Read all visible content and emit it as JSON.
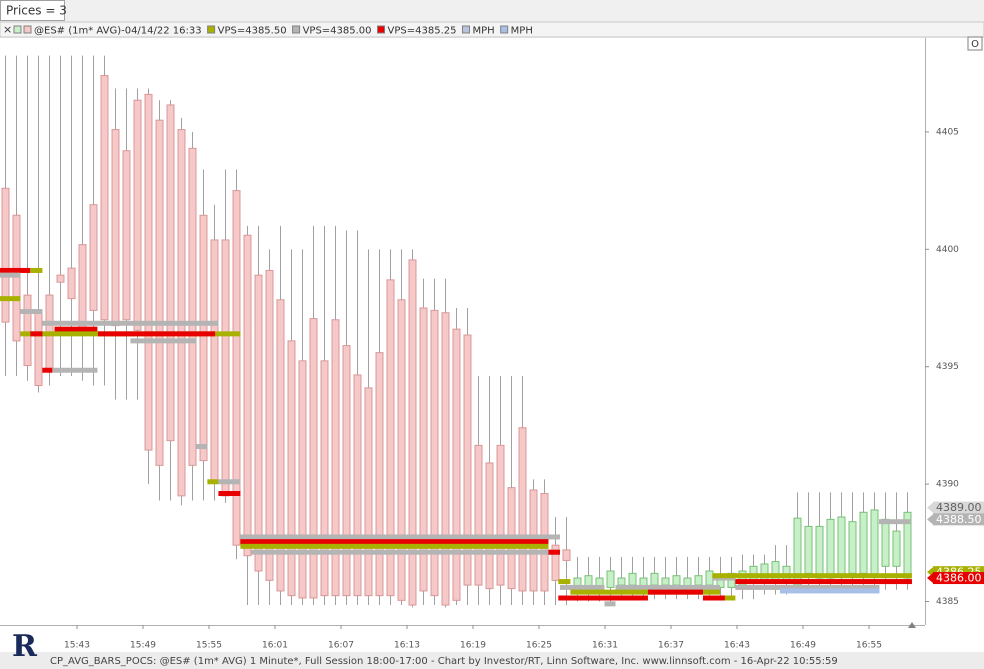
{
  "prices_label": "Prices = 3",
  "corner_button": "O",
  "logo": "R",
  "footer": "CP_AVG_BARS_POCS: @ES# (1m* AVG) 1 Minute*, Full Session 18:00-17:00 - Chart by Investor/RT, Linn Software, Inc. www.linnsoft.com - 16-Apr-22 10:55:59",
  "chart_data": {
    "type": "candlestick",
    "legend": [
      {
        "name": "@ES# (1m* AVG)-04/14/22 16:33",
        "colors": [
          "#c8f0c8",
          "#f6c8c8"
        ]
      },
      {
        "name": "VPS=4385.50",
        "colors": [
          "#a8b000"
        ]
      },
      {
        "name": "VPS=4385.00",
        "colors": [
          "#b4b4b4"
        ]
      },
      {
        "name": "VPS=4385.25",
        "colors": [
          "#e80000"
        ]
      },
      {
        "name": "MPH",
        "colors": [
          "#b8c4dc"
        ]
      },
      {
        "name": "MPH",
        "colors": [
          "#a8c0e8"
        ]
      }
    ],
    "up_color": "#c8f0c8",
    "up_edge": "#78c078",
    "down_color": "#f6c8c8",
    "down_edge": "#d89898",
    "wick_color": "#a0a0a0",
    "categories": [
      null,
      null,
      null,
      null,
      null,
      null,
      "15:43",
      null,
      null,
      null,
      null,
      null,
      "15:49",
      null,
      null,
      null,
      null,
      null,
      "15:55",
      null,
      null,
      null,
      null,
      null,
      "16:01",
      null,
      null,
      null,
      null,
      null,
      "16:07",
      null,
      null,
      null,
      null,
      null,
      "16:13",
      null,
      null,
      null,
      null,
      null,
      "16:19",
      null,
      null,
      null,
      null,
      null,
      "16:25",
      null,
      null,
      null,
      null,
      null,
      "16:31",
      null,
      null,
      null,
      null,
      null,
      "16:37",
      null,
      null,
      null,
      null,
      null,
      "16:43",
      null,
      null,
      null,
      null,
      null,
      "16:49",
      null,
      null,
      null,
      null,
      null,
      "16:55",
      null,
      null,
      null,
      null
    ],
    "open": [
      4402.6,
      4401.45,
      4398.05,
      4397.4,
      4398.05,
      4398.9,
      4399.2,
      4400.2,
      4401.9,
      4407.4,
      4405.1,
      4404.2,
      4406.35,
      4406.6,
      4405.5,
      4406.15,
      4405.1,
      4404.3,
      4401.45,
      4400.4,
      4400.4,
      4402.5,
      4400.6,
      4398.9,
      4399.1,
      4397.85,
      4396.1,
      4395.25,
      4397.05,
      4395.25,
      4397.0,
      4395.9,
      4394.65,
      4394.1,
      4395.6,
      4398.7,
      4397.85,
      4399.55,
      4397.5,
      4397.4,
      4397.3,
      4396.6,
      4396.35,
      4391.65,
      4390.9,
      4391.65,
      4389.85,
      4392.4,
      4389.75,
      4389.6,
      4387.4,
      4387.2,
      4385.5,
      4385.6,
      4385.5,
      4385.6,
      4385.7,
      4385.7,
      4385.6,
      4385.7,
      4385.7,
      4385.7,
      4385.6,
      4385.7,
      4385.7,
      4385.6,
      4385.6,
      4385.7,
      4385.8,
      4385.8,
      4385.9,
      4385.9,
      4385.7,
      4386.2,
      4386.0,
      4386.0,
      4386.1,
      4386.2,
      4386.2,
      4386.1,
      4386.5,
      4386.5,
      4386.0
    ],
    "high": [
      4408.25,
      4408.25,
      4408.25,
      4408.25,
      4408.25,
      4408.25,
      4408.25,
      4408.25,
      4408.25,
      4408.25,
      4406.85,
      4406.85,
      4406.85,
      4406.85,
      4406.35,
      4406.35,
      4405.6,
      4405.0,
      4403.4,
      4401.9,
      4403.4,
      4403.4,
      4401.0,
      4401.0,
      4400.0,
      4401.0,
      4400.0,
      4400.0,
      4401.0,
      4401.0,
      4401.0,
      4400.8,
      4400.8,
      4400.0,
      4400.0,
      4400.0,
      4400.0,
      4400.0,
      4398.75,
      4398.75,
      4398.75,
      4397.5,
      4397.5,
      4394.6,
      4394.6,
      4394.6,
      4394.6,
      4394.6,
      4390.2,
      4390.2,
      4388.6,
      4388.6,
      4386.9,
      4386.9,
      4386.9,
      4386.9,
      4386.9,
      4386.9,
      4386.9,
      4386.9,
      4386.9,
      4386.9,
      4386.9,
      4386.9,
      4386.9,
      4386.9,
      4386.9,
      4387.0,
      4387.0,
      4387.0,
      4387.4,
      4387.4,
      4389.65,
      4389.65,
      4389.65,
      4389.65,
      4389.65,
      4389.65,
      4389.65,
      4389.65,
      4389.65,
      4389.65,
      4389.65
    ],
    "low": [
      4394.6,
      4394.6,
      4394.4,
      4393.9,
      4394.2,
      4394.6,
      4394.6,
      4394.4,
      4394.2,
      4394.2,
      4393.6,
      4393.6,
      4393.6,
      4390.0,
      4389.3,
      4389.3,
      4389.1,
      4389.3,
      4389.3,
      4389.3,
      4389.2,
      4386.8,
      4384.85,
      4384.85,
      4384.85,
      4384.85,
      4384.85,
      4384.85,
      4384.85,
      4384.85,
      4384.85,
      4384.85,
      4384.85,
      4384.85,
      4384.85,
      4384.85,
      4384.85,
      4384.75,
      4384.85,
      4384.85,
      4384.75,
      4384.85,
      4384.85,
      4384.85,
      4384.85,
      4384.85,
      4384.85,
      4384.85,
      4384.85,
      4384.85,
      4384.85,
      4384.85,
      4385.0,
      4385.0,
      4385.0,
      4385.0,
      4385.1,
      4385.1,
      4385.1,
      4385.1,
      4385.1,
      4385.1,
      4385.1,
      4385.1,
      4385.1,
      4385.1,
      4385.1,
      4385.1,
      4385.1,
      4385.3,
      4385.3,
      4385.3,
      4385.5,
      4385.5,
      4385.5,
      4385.5,
      4385.5,
      4385.5,
      4385.5,
      4385.5,
      4385.5,
      4385.5,
      4385.5
    ],
    "close": [
      4396.9,
      4396.1,
      4395.05,
      4394.2,
      4394.85,
      4398.6,
      4397.9,
      4396.55,
      4397.4,
      4397.0,
      4396.75,
      4397.0,
      4396.55,
      4391.45,
      4390.8,
      4391.85,
      4389.5,
      4390.8,
      4391.0,
      4390.15,
      4389.5,
      4387.4,
      4386.95,
      4386.3,
      4385.9,
      4385.45,
      4385.25,
      4385.15,
      4385.15,
      4385.25,
      4385.25,
      4385.25,
      4385.25,
      4385.25,
      4385.25,
      4385.25,
      4385.05,
      4384.85,
      4385.45,
      4385.25,
      4384.85,
      4385.05,
      4385.7,
      4385.7,
      4385.55,
      4385.7,
      4385.55,
      4385.45,
      4385.45,
      4385.45,
      4385.9,
      4386.75,
      4386.0,
      4386.1,
      4386.0,
      4386.3,
      4386.0,
      4386.2,
      4386.0,
      4386.2,
      4386.0,
      4386.1,
      4386.0,
      4386.1,
      4386.3,
      4386.0,
      4386.2,
      4386.3,
      4386.5,
      4386.6,
      4386.7,
      4386.5,
      4388.55,
      4388.2,
      4388.2,
      4388.5,
      4388.6,
      4388.4,
      4388.8,
      4388.9,
      4388.5,
      4388.0,
      4388.8
    ],
    "levels": [
      {
        "color": "#e80000",
        "value": 4399.1,
        "start": -0.5,
        "end": 2.3
      },
      {
        "color": "#a8b000",
        "value": 4399.1,
        "start": 2.3,
        "end": 3.4
      },
      {
        "color": "#b4b4b4",
        "value": 4398.9,
        "start": -0.5,
        "end": 1.4
      },
      {
        "color": "#a8b000",
        "value": 4397.9,
        "start": -0.5,
        "end": 1.4
      },
      {
        "color": "#b4b4b4",
        "value": 4397.35,
        "start": 1.4,
        "end": 3.4
      },
      {
        "color": "#b4b4b4",
        "value": 4396.85,
        "start": 3.4,
        "end": 19.4
      },
      {
        "color": "#e80000",
        "value": 4396.6,
        "start": 4.5,
        "end": 8.4
      },
      {
        "color": "#a8b000",
        "value": 4396.4,
        "start": 1.4,
        "end": 21.4
      },
      {
        "color": "#e80000",
        "value": 4396.4,
        "start": 8.45,
        "end": 19.1
      },
      {
        "color": "#e80000",
        "value": 4396.4,
        "start": 2.3,
        "end": 3.4
      },
      {
        "color": "#b4b4b4",
        "value": 4396.1,
        "start": 11.4,
        "end": 17.4
      },
      {
        "color": "#b4b4b4",
        "value": 4394.85,
        "start": 4.3,
        "end": 8.4
      },
      {
        "color": "#e80000",
        "value": 4394.85,
        "start": 3.4,
        "end": 4.3
      },
      {
        "color": "#b4b4b4",
        "value": 4391.6,
        "start": 17.4,
        "end": 18.4
      },
      {
        "color": "#a8b000",
        "value": 4390.1,
        "start": 18.4,
        "end": 19.4
      },
      {
        "color": "#b4b4b4",
        "value": 4390.1,
        "start": 19.4,
        "end": 21.4
      },
      {
        "color": "#e80000",
        "value": 4389.6,
        "start": 19.4,
        "end": 21.4
      },
      {
        "color": "#b4b4b4",
        "value": 4387.75,
        "start": 21.4,
        "end": 50.45
      },
      {
        "color": "#e80000",
        "value": 4387.55,
        "start": 21.4,
        "end": 49.4
      },
      {
        "color": "#a8b000",
        "value": 4387.35,
        "start": 21.4,
        "end": 49.4
      },
      {
        "color": "#b4b4b4",
        "value": 4387.1,
        "start": 22.4,
        "end": 50.45
      },
      {
        "color": "#e80000",
        "value": 4387.1,
        "start": 49.4,
        "end": 50.45
      },
      {
        "color": "#a8b000",
        "value": 4385.85,
        "start": 50.3,
        "end": 51.4
      },
      {
        "color": "#b4b4b4",
        "value": 4385.6,
        "start": 50.45,
        "end": 54.5
      },
      {
        "color": "#b4b4b4",
        "value": 4385.6,
        "start": 55.5,
        "end": 65.0
      },
      {
        "color": "#a8b000",
        "value": 4385.4,
        "start": 51.4,
        "end": 65.0
      },
      {
        "color": "#e80000",
        "value": 4385.4,
        "start": 58.45,
        "end": 63.45
      },
      {
        "color": "#e80000",
        "value": 4385.15,
        "start": 50.3,
        "end": 58.45
      },
      {
        "color": "#e80000",
        "value": 4385.15,
        "start": 63.45,
        "end": 65.45
      },
      {
        "color": "#a8b000",
        "value": 4385.15,
        "start": 65.45,
        "end": 66.4
      },
      {
        "color": "#b4b4b4",
        "value": 4384.9,
        "start": 54.5,
        "end": 55.5
      },
      {
        "color": "#b4b4b4",
        "value": 4386.0,
        "start": 64.3,
        "end": 66.4
      },
      {
        "color": "#a8b000",
        "value": 4386.1,
        "start": 64.3,
        "end": 82.45
      },
      {
        "color": "#e80000",
        "value": 4385.85,
        "start": 66.4,
        "end": 82.45
      },
      {
        "color": "#b4b4b4",
        "value": 4385.6,
        "start": 66.4,
        "end": 79.5
      },
      {
        "color": "#a8c0e8",
        "value": 4385.45,
        "start": 70.45,
        "end": 79.5
      },
      {
        "color": "#b4b4b4",
        "value": 4388.4,
        "start": 79.45,
        "end": 82.3
      }
    ],
    "markers": [
      {
        "value": 4389,
        "label": "4389.00",
        "color": "#d8d8d8",
        "text_color": "#606060"
      },
      {
        "value": 4388.5,
        "label": "4388.50",
        "color": "#b4b4b4",
        "text_color": "#ffffff"
      },
      {
        "value": 4386.25,
        "label": "4386.25",
        "color": "#a8b000",
        "text_color": "#ffffff"
      },
      {
        "value": 4386,
        "label": "4386.00",
        "color": "#e80000",
        "text_color": "#ffffff"
      }
    ],
    "ylim": [
      4384,
      4409
    ],
    "yticks": [
      4385,
      4390,
      4395,
      4400,
      4405
    ]
  }
}
